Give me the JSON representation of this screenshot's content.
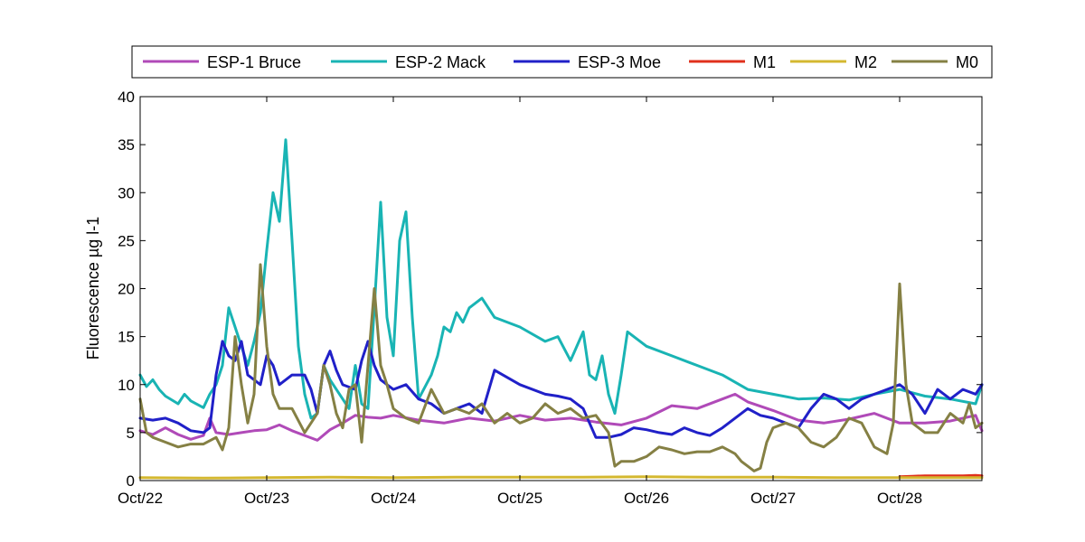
{
  "chart_data": {
    "type": "line",
    "title": "",
    "xlabel": "",
    "ylabel": "Fluorescence µg l-1",
    "x_tick_labels": [
      "Oct/22",
      "Oct/23",
      "Oct/24",
      "Oct/25",
      "Oct/26",
      "Oct/27",
      "Oct/28"
    ],
    "x_tick_values": [
      22,
      23,
      24,
      25,
      26,
      27,
      28
    ],
    "xlim": [
      22,
      28.65
    ],
    "ylim": [
      0,
      40
    ],
    "y_ticks": [
      0,
      5,
      10,
      15,
      20,
      25,
      30,
      35,
      40
    ],
    "grid": false,
    "legend_position": "top-outside",
    "series": [
      {
        "name": "ESP-1 Bruce",
        "color": "#b04ab8",
        "x": [
          22.0,
          22.1,
          22.2,
          22.3,
          22.4,
          22.5,
          22.55,
          22.6,
          22.7,
          22.8,
          22.9,
          23.0,
          23.1,
          23.2,
          23.3,
          23.4,
          23.5,
          23.6,
          23.7,
          23.8,
          23.9,
          24.0,
          24.2,
          24.4,
          24.6,
          24.8,
          25.0,
          25.2,
          25.4,
          25.6,
          25.8,
          26.0,
          26.2,
          26.4,
          26.6,
          26.7,
          26.8,
          27.0,
          27.2,
          27.4,
          27.6,
          27.8,
          28.0,
          28.2,
          28.4,
          28.5,
          28.6,
          28.65
        ],
        "y": [
          5.2,
          4.8,
          5.5,
          4.8,
          4.3,
          4.7,
          6.5,
          5.0,
          4.8,
          5.0,
          5.2,
          5.3,
          5.8,
          5.2,
          4.7,
          4.2,
          5.3,
          6.0,
          6.8,
          6.6,
          6.5,
          6.8,
          6.3,
          6.0,
          6.5,
          6.2,
          6.8,
          6.3,
          6.5,
          6.1,
          5.8,
          6.5,
          7.8,
          7.5,
          8.5,
          9.0,
          8.2,
          7.3,
          6.3,
          6.0,
          6.4,
          7.0,
          6.0,
          6.0,
          6.2,
          6.5,
          6.8,
          5.2
        ]
      },
      {
        "name": "ESP-2 Mack",
        "color": "#19b4b4",
        "x": [
          22.0,
          22.05,
          22.1,
          22.15,
          22.2,
          22.3,
          22.35,
          22.4,
          22.5,
          22.55,
          22.6,
          22.65,
          22.7,
          22.75,
          22.8,
          22.85,
          22.9,
          22.95,
          23.0,
          23.05,
          23.1,
          23.15,
          23.2,
          23.25,
          23.3,
          23.35,
          23.4,
          23.45,
          23.5,
          23.6,
          23.65,
          23.7,
          23.75,
          23.8,
          23.85,
          23.9,
          23.95,
          24.0,
          24.05,
          24.1,
          24.15,
          24.2,
          24.3,
          24.35,
          24.4,
          24.45,
          24.5,
          24.55,
          24.6,
          24.7,
          24.8,
          25.0,
          25.2,
          25.3,
          25.4,
          25.5,
          25.55,
          25.6,
          25.65,
          25.7,
          25.75,
          25.8,
          25.85,
          26.0,
          26.2,
          26.4,
          26.6,
          26.8,
          27.0,
          27.2,
          27.4,
          27.6,
          27.8,
          28.0,
          28.2,
          28.4,
          28.6,
          28.65
        ],
        "y": [
          11.0,
          9.8,
          10.5,
          9.5,
          8.8,
          8.0,
          9.0,
          8.3,
          7.6,
          9.0,
          10.0,
          12.0,
          18.0,
          16.0,
          14.0,
          12.0,
          14.5,
          17.5,
          24.0,
          30.0,
          27.0,
          35.5,
          25.0,
          14.0,
          9.0,
          6.5,
          7.0,
          12.0,
          10.5,
          8.5,
          7.5,
          12.0,
          8.0,
          7.5,
          18.0,
          29.0,
          17.0,
          13.0,
          25.0,
          28.0,
          17.0,
          8.5,
          11.0,
          13.0,
          16.0,
          15.5,
          17.5,
          16.5,
          18.0,
          19.0,
          17.0,
          16.0,
          14.5,
          15.0,
          12.5,
          15.5,
          11.0,
          10.5,
          13.0,
          9.0,
          7.0,
          11.0,
          15.5,
          14.0,
          13.0,
          12.0,
          11.0,
          9.5,
          9.0,
          8.5,
          8.6,
          8.4,
          9.0,
          9.5,
          8.8,
          8.5,
          8.0,
          10.0
        ]
      },
      {
        "name": "ESP-3 Moe",
        "color": "#2020c8",
        "x": [
          22.0,
          22.1,
          22.2,
          22.3,
          22.4,
          22.5,
          22.55,
          22.6,
          22.65,
          22.7,
          22.75,
          22.8,
          22.85,
          22.9,
          22.95,
          23.0,
          23.05,
          23.1,
          23.2,
          23.3,
          23.35,
          23.4,
          23.45,
          23.5,
          23.55,
          23.6,
          23.7,
          23.75,
          23.8,
          23.85,
          23.9,
          24.0,
          24.1,
          24.2,
          24.3,
          24.4,
          24.5,
          24.6,
          24.7,
          24.8,
          25.0,
          25.2,
          25.3,
          25.4,
          25.5,
          25.6,
          25.7,
          25.8,
          25.9,
          26.0,
          26.1,
          26.2,
          26.3,
          26.4,
          26.5,
          26.6,
          26.7,
          26.8,
          26.9,
          27.0,
          27.1,
          27.2,
          27.3,
          27.4,
          27.5,
          27.6,
          27.7,
          27.8,
          27.9,
          28.0,
          28.1,
          28.2,
          28.3,
          28.4,
          28.5,
          28.6,
          28.65
        ],
        "y": [
          6.5,
          6.3,
          6.5,
          6.0,
          5.2,
          5.0,
          5.5,
          11.0,
          14.5,
          13.0,
          12.5,
          14.5,
          11.0,
          10.5,
          10.0,
          13.0,
          12.0,
          10.0,
          11.0,
          11.0,
          9.5,
          7.0,
          12.0,
          13.5,
          11.5,
          10.0,
          9.5,
          12.5,
          14.5,
          12.0,
          10.5,
          9.5,
          10.0,
          8.5,
          8.0,
          7.0,
          7.5,
          8.0,
          7.0,
          11.5,
          10.0,
          9.0,
          8.8,
          8.5,
          7.5,
          4.5,
          4.5,
          4.8,
          5.5,
          5.3,
          5.0,
          4.8,
          5.5,
          5.0,
          4.7,
          5.5,
          6.5,
          7.5,
          6.8,
          6.5,
          6.0,
          5.5,
          7.5,
          9.0,
          8.5,
          7.5,
          8.5,
          9.0,
          9.5,
          10.0,
          9.0,
          7.0,
          9.5,
          8.5,
          9.5,
          9.0,
          10.0
        ]
      },
      {
        "name": "M1",
        "color": "#e0301c",
        "x": [
          28.0,
          28.1,
          28.2,
          28.3,
          28.4,
          28.5,
          28.6,
          28.65
        ],
        "y": [
          0.4,
          0.45,
          0.5,
          0.5,
          0.5,
          0.5,
          0.55,
          0.5
        ]
      },
      {
        "name": "M2",
        "color": "#d4b830",
        "x": [
          22.0,
          22.5,
          23.0,
          23.5,
          24.0,
          24.5,
          25.0,
          25.5,
          26.0,
          26.5,
          27.0,
          27.5,
          28.0,
          28.5,
          28.65
        ],
        "y": [
          0.3,
          0.25,
          0.3,
          0.35,
          0.3,
          0.35,
          0.35,
          0.35,
          0.4,
          0.35,
          0.35,
          0.3,
          0.3,
          0.3,
          0.3
        ]
      },
      {
        "name": "M0",
        "color": "#858044",
        "x": [
          22.0,
          22.05,
          22.1,
          22.2,
          22.3,
          22.4,
          22.5,
          22.6,
          22.65,
          22.7,
          22.75,
          22.8,
          22.85,
          22.9,
          22.95,
          23.0,
          23.05,
          23.1,
          23.2,
          23.3,
          23.4,
          23.45,
          23.5,
          23.55,
          23.6,
          23.65,
          23.7,
          23.75,
          23.8,
          23.85,
          23.9,
          23.95,
          24.0,
          24.1,
          24.2,
          24.3,
          24.4,
          24.5,
          24.6,
          24.7,
          24.8,
          24.9,
          25.0,
          25.1,
          25.2,
          25.3,
          25.4,
          25.5,
          25.6,
          25.7,
          25.75,
          25.8,
          25.9,
          26.0,
          26.1,
          26.2,
          26.3,
          26.4,
          26.5,
          26.6,
          26.7,
          26.75,
          26.8,
          26.85,
          26.9,
          26.95,
          27.0,
          27.1,
          27.2,
          27.3,
          27.4,
          27.5,
          27.6,
          27.7,
          27.8,
          27.9,
          27.95,
          28.0,
          28.05,
          28.1,
          28.2,
          28.3,
          28.4,
          28.5,
          28.55,
          28.6,
          28.65
        ],
        "y": [
          8.5,
          5.0,
          4.5,
          4.0,
          3.5,
          3.8,
          3.8,
          4.5,
          3.2,
          5.5,
          15.0,
          10.0,
          6.0,
          9.0,
          22.5,
          14.0,
          9.0,
          7.5,
          7.5,
          5.0,
          7.0,
          12.0,
          10.0,
          7.0,
          5.5,
          9.5,
          10.0,
          4.0,
          12.0,
          20.0,
          12.0,
          10.0,
          7.5,
          6.5,
          6.0,
          9.5,
          7.0,
          7.5,
          7.0,
          8.0,
          6.0,
          7.0,
          6.0,
          6.5,
          8.0,
          7.0,
          7.5,
          6.5,
          6.8,
          5.0,
          1.5,
          2.0,
          2.0,
          2.5,
          3.5,
          3.2,
          2.8,
          3.0,
          3.0,
          3.5,
          2.8,
          2.0,
          1.5,
          1.0,
          1.3,
          4.0,
          5.5,
          6.0,
          5.5,
          4.0,
          3.5,
          4.5,
          6.5,
          6.0,
          3.5,
          2.8,
          6.0,
          20.5,
          10.0,
          6.0,
          5.0,
          5.0,
          7.0,
          6.0,
          8.0,
          5.5,
          6.0
        ]
      }
    ]
  }
}
